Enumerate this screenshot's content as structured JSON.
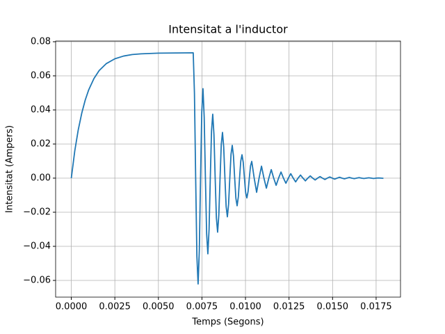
{
  "chart_data": {
    "type": "line",
    "title": "Intensitat a l'inductor",
    "x_label": "Temps (Segons)",
    "y_label": "Intensitat (Ampers)",
    "color": "#1f77b4",
    "grid": true,
    "xlim": [
      -0.0009,
      0.0189
    ],
    "ylim": [
      -0.0698,
      0.0804
    ],
    "xticks": [
      {
        "value": 0,
        "label": "0.0000"
      },
      {
        "value": 0.0025,
        "label": "0.0025"
      },
      {
        "value": 0.005,
        "label": "0.0050"
      },
      {
        "value": 0.0075,
        "label": "0.0075"
      },
      {
        "value": 0.01,
        "label": "0.0100"
      },
      {
        "value": 0.0125,
        "label": "0.0125"
      },
      {
        "value": 0.015,
        "label": "0.0150"
      },
      {
        "value": 0.0175,
        "label": "0.0175"
      }
    ],
    "yticks": [
      {
        "value": -0.06,
        "label": "−0.06"
      },
      {
        "value": -0.04,
        "label": "−0.04"
      },
      {
        "value": -0.02,
        "label": "−0.02"
      },
      {
        "value": 0,
        "label": "0.00"
      },
      {
        "value": 0.02,
        "label": "0.02"
      },
      {
        "value": 0.04,
        "label": "0.04"
      },
      {
        "value": 0.06,
        "label": "0.06"
      },
      {
        "value": 0.08,
        "label": "0.08"
      }
    ],
    "x": [
      0,
      0.0002,
      0.0004,
      0.0006,
      0.0008,
      0.001,
      0.0013,
      0.0016,
      0.002,
      0.0025,
      0.003,
      0.0035,
      0.004,
      0.005,
      0.006,
      0.007,
      0.00707,
      0.00714,
      0.00721,
      0.00728,
      0.00735,
      0.00742,
      0.00749,
      0.00756,
      0.00763,
      0.0077,
      0.00777,
      0.00784,
      0.00791,
      0.00798,
      0.00805,
      0.00812,
      0.00819,
      0.00826,
      0.00833,
      0.0084,
      0.00847,
      0.00854,
      0.00861,
      0.00868,
      0.00875,
      0.00882,
      0.00889,
      0.00896,
      0.00903,
      0.0091,
      0.00917,
      0.00924,
      0.00931,
      0.00938,
      0.00945,
      0.00952,
      0.00959,
      0.00966,
      0.00973,
      0.0098,
      0.00987,
      0.00994,
      0.01001,
      0.01008,
      0.01015,
      0.01022,
      0.01029,
      0.01036,
      0.0105,
      0.01064,
      0.01078,
      0.01092,
      0.01106,
      0.0112,
      0.01134,
      0.01148,
      0.01162,
      0.01176,
      0.0119,
      0.01204,
      0.01218,
      0.01232,
      0.01246,
      0.0126,
      0.01274,
      0.01288,
      0.01302,
      0.01316,
      0.0133,
      0.01344,
      0.01358,
      0.01372,
      0.01386,
      0.014,
      0.01414,
      0.01428,
      0.01442,
      0.01456,
      0.0147,
      0.01484,
      0.01498,
      0.01512,
      0.01526,
      0.0154,
      0.01554,
      0.01568,
      0.01582,
      0.01596,
      0.0161,
      0.01624,
      0.01638,
      0.01652,
      0.01666,
      0.0168,
      0.01694,
      0.01708,
      0.01722,
      0.01736,
      0.0175,
      0.01764,
      0.01778,
      0.01792
    ],
    "values": [
      0,
      0.016,
      0.0284,
      0.0381,
      0.0458,
      0.0518,
      0.0584,
      0.0631,
      0.0671,
      0.07,
      0.0716,
      0.0725,
      0.0729,
      0.0733,
      0.0734,
      0.0735,
      0.0498,
      0,
      -0.0458,
      -0.0621,
      -0.0421,
      0,
      0.0387,
      0.0525,
      0.0356,
      0,
      -0.0327,
      -0.0444,
      -0.03,
      0,
      0.0276,
      0.0375,
      0.0255,
      0,
      -0.0234,
      -0.0317,
      -0.0215,
      0,
      0.0198,
      0.0268,
      0.0182,
      0,
      -0.0167,
      -0.0227,
      -0.0153,
      0,
      0.0141,
      0.0192,
      0.013,
      0,
      -0.0119,
      -0.0162,
      -0.011,
      0,
      0.0101,
      0.0137,
      0.0093,
      0,
      -0.0086,
      -0.0116,
      -0.0078,
      0,
      0.0072,
      0.0098,
      0,
      -0.0083,
      0,
      0.007,
      0,
      -0.0059,
      0,
      0.005,
      0,
      -0.0042,
      0,
      0.0036,
      0,
      -0.003,
      0,
      0.0026,
      0,
      -0.0022,
      0,
      0.0018,
      0,
      -0.0016,
      0,
      0.0013,
      0,
      -0.0011,
      0,
      0.0009,
      0,
      -0.0008,
      0,
      0.0007,
      0,
      -0.0006,
      0,
      0.0005,
      0,
      -0.0004,
      0,
      0.0004,
      0,
      -0.0003,
      0,
      0.0003,
      0,
      -0.0002,
      0,
      0.0002,
      0,
      -0.0002,
      0,
      0.0001,
      0,
      -0.0001
    ]
  }
}
